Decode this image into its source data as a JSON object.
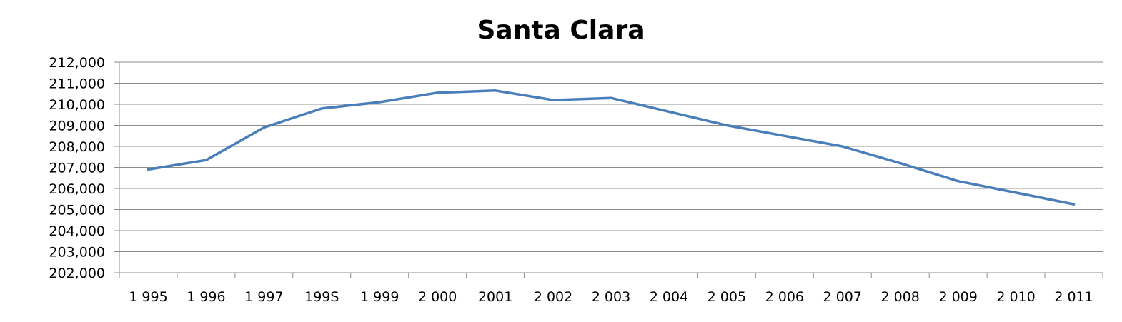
{
  "chart_data": {
    "type": "line",
    "title": "Santa Clara",
    "xlabel": "",
    "ylabel": "",
    "categories": [
      "1 995",
      "1 996",
      "1 997",
      "199S",
      "1 999",
      "2 000",
      "2001",
      "2 002",
      "2 003",
      "2 004",
      "2 005",
      "2 006",
      "2 007",
      "2 008",
      "2 009",
      "2 010",
      "2 011"
    ],
    "y_tick_labels": [
      "212,000",
      "211,000",
      "210,000",
      "209,000",
      "208,000",
      "207,000",
      "206,000",
      "205,000",
      "204,000",
      "203,000",
      "202,000"
    ],
    "ylim": [
      202000,
      212000
    ],
    "series": [
      {
        "values": [
          206900,
          207350,
          208900,
          209800,
          210100,
          210550,
          210650,
          210200,
          210300,
          209650,
          209000,
          208500,
          208000,
          207200,
          206350,
          205800,
          205250
        ]
      }
    ],
    "grid": true,
    "legend": "none",
    "colors": {
      "series": "#4a7ebb",
      "grid": "#8c8c8c"
    }
  }
}
